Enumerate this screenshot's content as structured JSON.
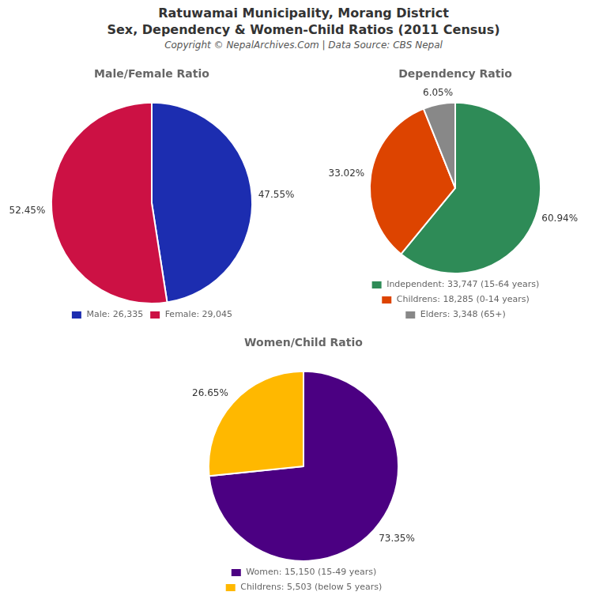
{
  "title": [
    "Ratuwamai Municipality, Morang District",
    "Sex, Dependency & Women-Child Ratios (2011 Census)"
  ],
  "subtitle": "Copyright © NepalArchives.Com | Data Source: CBS Nepal",
  "chart_data": [
    {
      "type": "pie",
      "title": "Male/Female Ratio",
      "categories": [
        "Male: 26,335",
        "Female: 29,045"
      ],
      "values": [
        47.55,
        52.45
      ],
      "value_labels": [
        "47.55%",
        "52.45%"
      ],
      "colors": [
        "#1C2DB0",
        "#CC1144"
      ],
      "data_labels": true,
      "legend": "bottom"
    },
    {
      "type": "pie",
      "title": "Dependency Ratio",
      "categories": [
        "Independent: 33,747 (15-64 years)",
        "Childrens: 18,285 (0-14 years)",
        "Elders: 3,348 (65+)"
      ],
      "values": [
        60.94,
        33.02,
        6.05
      ],
      "value_labels": [
        "60.94%",
        "33.02%",
        "6.05%"
      ],
      "colors": [
        "#2E8B57",
        "#DD4400",
        "#888888"
      ],
      "data_labels": true,
      "legend": "bottom"
    },
    {
      "type": "pie",
      "title": "Women/Child Ratio",
      "categories": [
        "Women: 15,150 (15-49 years)",
        "Childrens: 5,503 (below 5 years)"
      ],
      "values": [
        73.35,
        26.65
      ],
      "value_labels": [
        "73.35%",
        "26.65%"
      ],
      "colors": [
        "#4B0082",
        "#FFB800"
      ],
      "data_labels": true,
      "legend": "bottom"
    }
  ]
}
